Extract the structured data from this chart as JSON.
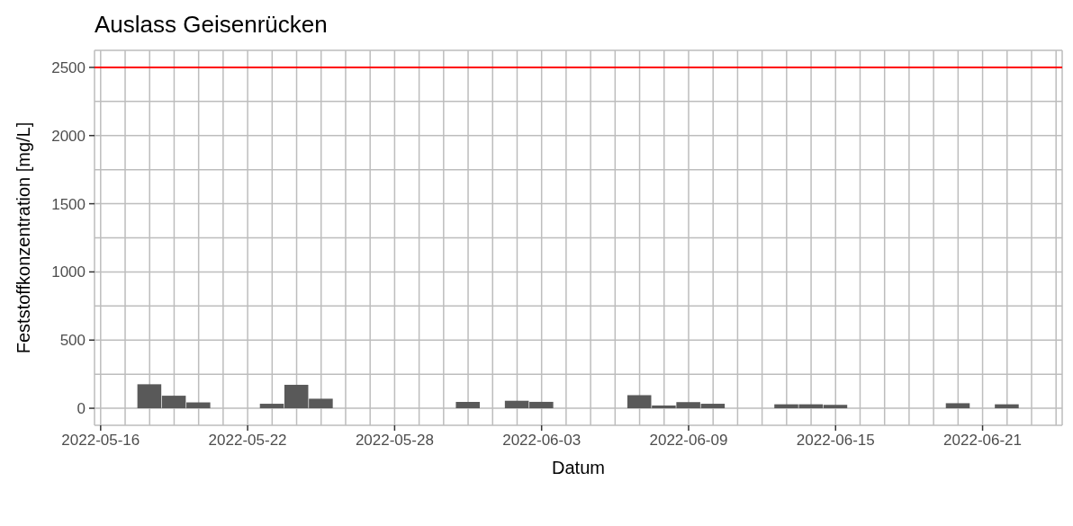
{
  "chart_data": {
    "type": "bar",
    "title": "Auslass Geisenrücken",
    "xlabel": "Datum",
    "ylabel": "Feststoffkonzentration [mg/L]",
    "x": [
      "2022-05-18",
      "2022-05-19",
      "2022-05-20",
      "2022-05-23",
      "2022-05-24",
      "2022-05-25",
      "2022-05-31",
      "2022-06-02",
      "2022-06-03",
      "2022-06-07",
      "2022-06-08",
      "2022-06-09",
      "2022-06-10",
      "2022-06-13",
      "2022-06-14",
      "2022-06-15",
      "2022-06-20",
      "2022-06-22"
    ],
    "values": [
      176,
      92,
      43,
      33,
      172,
      70,
      47,
      55,
      47,
      96,
      20,
      45,
      33,
      29,
      29,
      25,
      37,
      29
    ],
    "color": "#595959",
    "xlim": [
      "2022-05-15T18:00",
      "2022-06-24T06:00"
    ],
    "xticks": [
      {
        "value": "2022-05-16",
        "label": "2022-05-16"
      },
      {
        "value": "2022-05-17",
        "label": null
      },
      {
        "value": "2022-05-18",
        "label": null
      },
      {
        "value": "2022-05-19",
        "label": null
      },
      {
        "value": "2022-05-20",
        "label": null
      },
      {
        "value": "2022-05-21",
        "label": null
      },
      {
        "value": "2022-05-22",
        "label": "2022-05-22"
      },
      {
        "value": "2022-05-23",
        "label": null
      },
      {
        "value": "2022-05-24",
        "label": null
      },
      {
        "value": "2022-05-25",
        "label": null
      },
      {
        "value": "2022-05-26",
        "label": null
      },
      {
        "value": "2022-05-27",
        "label": null
      },
      {
        "value": "2022-05-28",
        "label": "2022-05-28"
      },
      {
        "value": "2022-05-29",
        "label": null
      },
      {
        "value": "2022-05-30",
        "label": null
      },
      {
        "value": "2022-05-31",
        "label": null
      },
      {
        "value": "2022-06-01",
        "label": null
      },
      {
        "value": "2022-06-02",
        "label": null
      },
      {
        "value": "2022-06-03",
        "label": "2022-06-03"
      },
      {
        "value": "2022-06-04",
        "label": null
      },
      {
        "value": "2022-06-05",
        "label": null
      },
      {
        "value": "2022-06-06",
        "label": null
      },
      {
        "value": "2022-06-07",
        "label": null
      },
      {
        "value": "2022-06-08",
        "label": null
      },
      {
        "value": "2022-06-09",
        "label": "2022-06-09"
      },
      {
        "value": "2022-06-10",
        "label": null
      },
      {
        "value": "2022-06-11",
        "label": null
      },
      {
        "value": "2022-06-12",
        "label": null
      },
      {
        "value": "2022-06-13",
        "label": null
      },
      {
        "value": "2022-06-14",
        "label": null
      },
      {
        "value": "2022-06-15",
        "label": "2022-06-15"
      },
      {
        "value": "2022-06-16",
        "label": null
      },
      {
        "value": "2022-06-17",
        "label": null
      },
      {
        "value": "2022-06-18",
        "label": null
      },
      {
        "value": "2022-06-19",
        "label": null
      },
      {
        "value": "2022-06-20",
        "label": null
      },
      {
        "value": "2022-06-21",
        "label": "2022-06-21"
      },
      {
        "value": "2022-06-22",
        "label": null
      },
      {
        "value": "2022-06-23",
        "label": null
      },
      {
        "value": "2022-06-24",
        "label": null
      }
    ],
    "ylim": [
      -125,
      2625
    ],
    "yticks": [
      0,
      {
        "value": 250,
        "label": null
      },
      500,
      {
        "value": 750,
        "label": null
      },
      1000,
      {
        "value": 1250,
        "label": null
      },
      1500,
      {
        "value": 1750,
        "label": null
      },
      2000,
      {
        "value": 2250,
        "label": null
      },
      2500
    ],
    "grid": true,
    "ref_lines": [
      {
        "axis": "y",
        "value": 2500,
        "label": null,
        "color": "#ff0000",
        "line_style": "solid"
      }
    ]
  }
}
